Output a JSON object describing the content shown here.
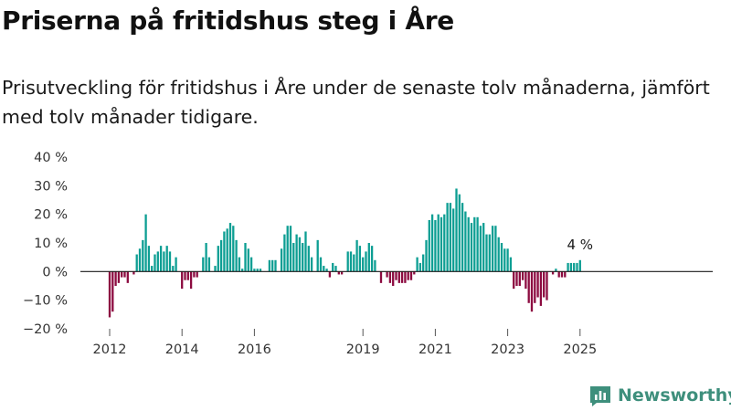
{
  "header": {
    "title": "Priserna på fritidshus steg i Åre",
    "subtitle": "Prisutveckling för fritidshus i Åre under de senaste tolv månaderna, jämfört med tolv månader tidigare."
  },
  "brand": {
    "name": "Newsworthy",
    "icon": "newsworthy-logo-icon",
    "color": "#3e8f7c"
  },
  "colors": {
    "positive": "#0d9e93",
    "negative": "#8c0b40",
    "zero_line": "#1a1a1a",
    "axis_text": "#333333"
  },
  "chart_data": {
    "type": "bar",
    "title": "Priserna på fritidshus steg i Åre",
    "subtitle": "Prisutveckling för fritidshus i Åre under de senaste tolv månaderna, jämfört med tolv månader tidigare.",
    "xlabel": "",
    "ylabel": "",
    "unit": "%",
    "ylim": [
      -20,
      40
    ],
    "yticks": [
      40,
      30,
      20,
      10,
      0,
      -10,
      -20
    ],
    "ytick_labels": [
      "40 %",
      "30 %",
      "20 %",
      "10 %",
      "0 %",
      "−10 %",
      "−20 %"
    ],
    "xticks": [
      "2012",
      "2014",
      "2016",
      "2019",
      "2021",
      "2023",
      "2025"
    ],
    "grid": false,
    "annotation": {
      "text": "4 %",
      "category": "2025-01"
    },
    "categories": [
      "2012-01",
      "2012-02",
      "2012-03",
      "2012-04",
      "2012-05",
      "2012-06",
      "2012-07",
      "2012-08",
      "2012-09",
      "2012-10",
      "2012-11",
      "2012-12",
      "2013-01",
      "2013-02",
      "2013-03",
      "2013-04",
      "2013-05",
      "2013-06",
      "2013-07",
      "2013-08",
      "2013-09",
      "2013-10",
      "2013-11",
      "2013-12",
      "2014-01",
      "2014-02",
      "2014-03",
      "2014-04",
      "2014-05",
      "2014-06",
      "2014-07",
      "2014-08",
      "2014-09",
      "2014-10",
      "2014-11",
      "2014-12",
      "2015-01",
      "2015-02",
      "2015-03",
      "2015-04",
      "2015-05",
      "2015-06",
      "2015-07",
      "2015-08",
      "2015-09",
      "2015-10",
      "2015-11",
      "2015-12",
      "2016-01",
      "2016-02",
      "2016-03",
      "2016-04",
      "2016-05",
      "2016-06",
      "2016-07",
      "2016-08",
      "2016-09",
      "2016-10",
      "2016-11",
      "2016-12",
      "2017-01",
      "2017-02",
      "2017-03",
      "2017-04",
      "2017-05",
      "2017-06",
      "2017-07",
      "2017-08",
      "2017-09",
      "2017-10",
      "2017-11",
      "2017-12",
      "2018-01",
      "2018-02",
      "2018-03",
      "2018-04",
      "2018-05",
      "2018-06",
      "2018-07",
      "2018-08",
      "2018-09",
      "2018-10",
      "2018-11",
      "2018-12",
      "2019-01",
      "2019-02",
      "2019-03",
      "2019-04",
      "2019-05",
      "2019-06",
      "2019-07",
      "2019-08",
      "2019-09",
      "2019-10",
      "2019-11",
      "2019-12",
      "2020-01",
      "2020-02",
      "2020-03",
      "2020-04",
      "2020-05",
      "2020-06",
      "2020-07",
      "2020-08",
      "2020-09",
      "2020-10",
      "2020-11",
      "2020-12",
      "2021-01",
      "2021-02",
      "2021-03",
      "2021-04",
      "2021-05",
      "2021-06",
      "2021-07",
      "2021-08",
      "2021-09",
      "2021-10",
      "2021-11",
      "2021-12",
      "2022-01",
      "2022-02",
      "2022-03",
      "2022-04",
      "2022-05",
      "2022-06",
      "2022-07",
      "2022-08",
      "2022-09",
      "2022-10",
      "2022-11",
      "2022-12",
      "2023-01",
      "2023-02",
      "2023-03",
      "2023-04",
      "2023-05",
      "2023-06",
      "2023-07",
      "2023-08",
      "2023-09",
      "2023-10",
      "2023-11",
      "2023-12",
      "2024-01",
      "2024-02",
      "2024-03",
      "2024-04",
      "2024-05",
      "2024-06",
      "2024-07",
      "2024-08",
      "2024-09",
      "2024-10",
      "2024-11",
      "2024-12",
      "2025-01"
    ],
    "values": [
      -16,
      -14,
      -5,
      -4,
      -2,
      -2,
      -4,
      0,
      -1,
      6,
      8,
      11,
      20,
      9,
      2,
      6,
      7,
      9,
      7,
      9,
      7,
      2,
      5,
      0,
      -6,
      -3,
      -3,
      -6,
      -2,
      -2,
      0,
      5,
      10,
      5,
      0,
      2,
      9,
      11,
      14,
      15,
      17,
      16,
      11,
      5,
      1,
      10,
      8,
      5,
      1,
      1,
      1,
      0,
      0,
      4,
      4,
      4,
      0,
      8,
      13,
      16,
      16,
      10,
      13,
      12,
      10,
      14,
      9,
      5,
      0,
      11,
      5,
      2,
      1,
      -2,
      3,
      2,
      -1,
      -1,
      0,
      7,
      7,
      6,
      11,
      9,
      5,
      7,
      10,
      9,
      4,
      0,
      -4,
      0,
      -2,
      -4,
      -5,
      -3,
      -4,
      -4,
      -4,
      -3,
      -3,
      -1,
      5,
      3,
      6,
      11,
      18,
      20,
      18,
      20,
      19,
      20,
      24,
      24,
      22,
      29,
      27,
      24,
      21,
      19,
      17,
      19,
      19,
      16,
      17,
      13,
      13,
      16,
      16,
      12,
      10,
      8,
      8,
      5,
      -6,
      -5,
      -5,
      -3,
      -6,
      -11,
      -14,
      -11,
      -9,
      -12,
      -9,
      -10,
      0,
      -1,
      1,
      -2,
      -2,
      -2,
      3,
      3,
      3,
      3,
      4
    ]
  }
}
